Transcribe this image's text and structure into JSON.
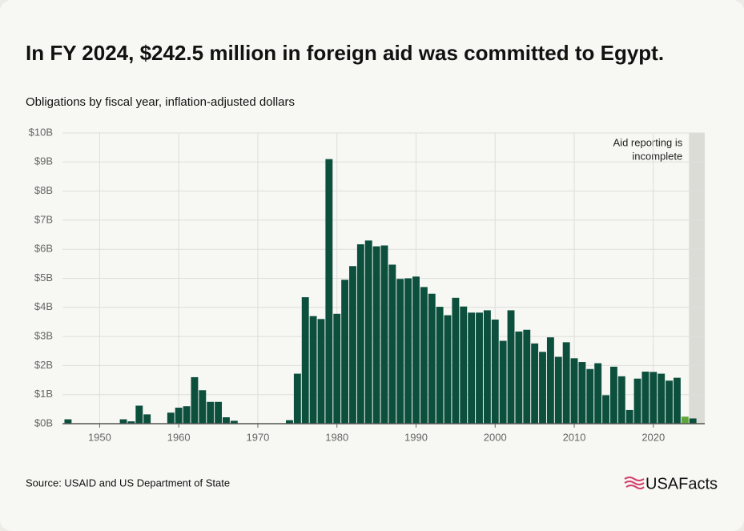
{
  "chart_data": {
    "type": "bar",
    "title": "In FY 2024, $242.5 million in foreign aid was committed to Egypt.",
    "subtitle": "Obligations by fiscal year, inflation-adjusted dollars",
    "source": "Source: USAID and US Department of State",
    "logo": "USAFacts",
    "annotation": {
      "lines": [
        "Aid reporting is",
        "incomplete"
      ],
      "x_start": 2024.5,
      "color": "#dcdcd7"
    },
    "x": [
      1946,
      1947,
      1948,
      1949,
      1950,
      1951,
      1952,
      1953,
      1954,
      1955,
      1956,
      1957,
      1958,
      1959,
      1960,
      1961,
      1962,
      1963,
      1964,
      1965,
      1966,
      1967,
      1968,
      1969,
      1970,
      1971,
      1972,
      1973,
      1974,
      1975,
      1976,
      1977,
      1978,
      1979,
      1980,
      1981,
      1982,
      1983,
      1984,
      1985,
      1986,
      1987,
      1988,
      1989,
      1990,
      1991,
      1992,
      1993,
      1994,
      1995,
      1996,
      1997,
      1998,
      1999,
      2000,
      2001,
      2002,
      2003,
      2004,
      2005,
      2006,
      2007,
      2008,
      2009,
      2010,
      2011,
      2012,
      2013,
      2014,
      2015,
      2016,
      2017,
      2018,
      2019,
      2020,
      2021,
      2022,
      2023,
      2024,
      2025
    ],
    "values": [
      0.15,
      0,
      0,
      0,
      0,
      0,
      0,
      0.15,
      0.08,
      0.62,
      0.32,
      0,
      0,
      0.38,
      0.55,
      0.6,
      1.6,
      1.15,
      0.75,
      0.75,
      0.22,
      0.1,
      0,
      0,
      0,
      0,
      0,
      0,
      0.12,
      1.72,
      4.35,
      3.7,
      3.6,
      9.1,
      3.78,
      4.95,
      5.42,
      6.17,
      6.3,
      6.1,
      6.13,
      5.47,
      4.98,
      5.0,
      5.06,
      4.7,
      4.47,
      4.02,
      3.73,
      4.33,
      4.03,
      3.82,
      3.82,
      3.9,
      3.58,
      2.85,
      3.9,
      3.17,
      3.23,
      2.76,
      2.47,
      2.97,
      2.3,
      2.8,
      2.25,
      2.12,
      1.88,
      2.08,
      0.98,
      1.96,
      1.63,
      0.47,
      1.55,
      1.79,
      1.78,
      1.72,
      1.48,
      1.58,
      0.2425,
      0.18
    ],
    "color": "#0c4f3d",
    "highlight": {
      "x": 2024,
      "color": "#5ea63a"
    },
    "xlim": [
      1945.3,
      2026.5
    ],
    "xticks": [
      1950,
      1960,
      1970,
      1980,
      1990,
      2000,
      2010,
      2020
    ],
    "ylim": [
      0,
      10
    ],
    "yticks": [
      {
        "value": 0,
        "label": "$0B"
      },
      {
        "value": 1,
        "label": "$1B"
      },
      {
        "value": 2,
        "label": "$2B"
      },
      {
        "value": 3,
        "label": "$3B"
      },
      {
        "value": 4,
        "label": "$4B"
      },
      {
        "value": 5,
        "label": "$5B"
      },
      {
        "value": 6,
        "label": "$6B"
      },
      {
        "value": 7,
        "label": "$7B"
      },
      {
        "value": 8,
        "label": "$8B"
      },
      {
        "value": 9,
        "label": "$9B"
      },
      {
        "value": 10,
        "label": "$10B"
      }
    ],
    "grid": true
  }
}
